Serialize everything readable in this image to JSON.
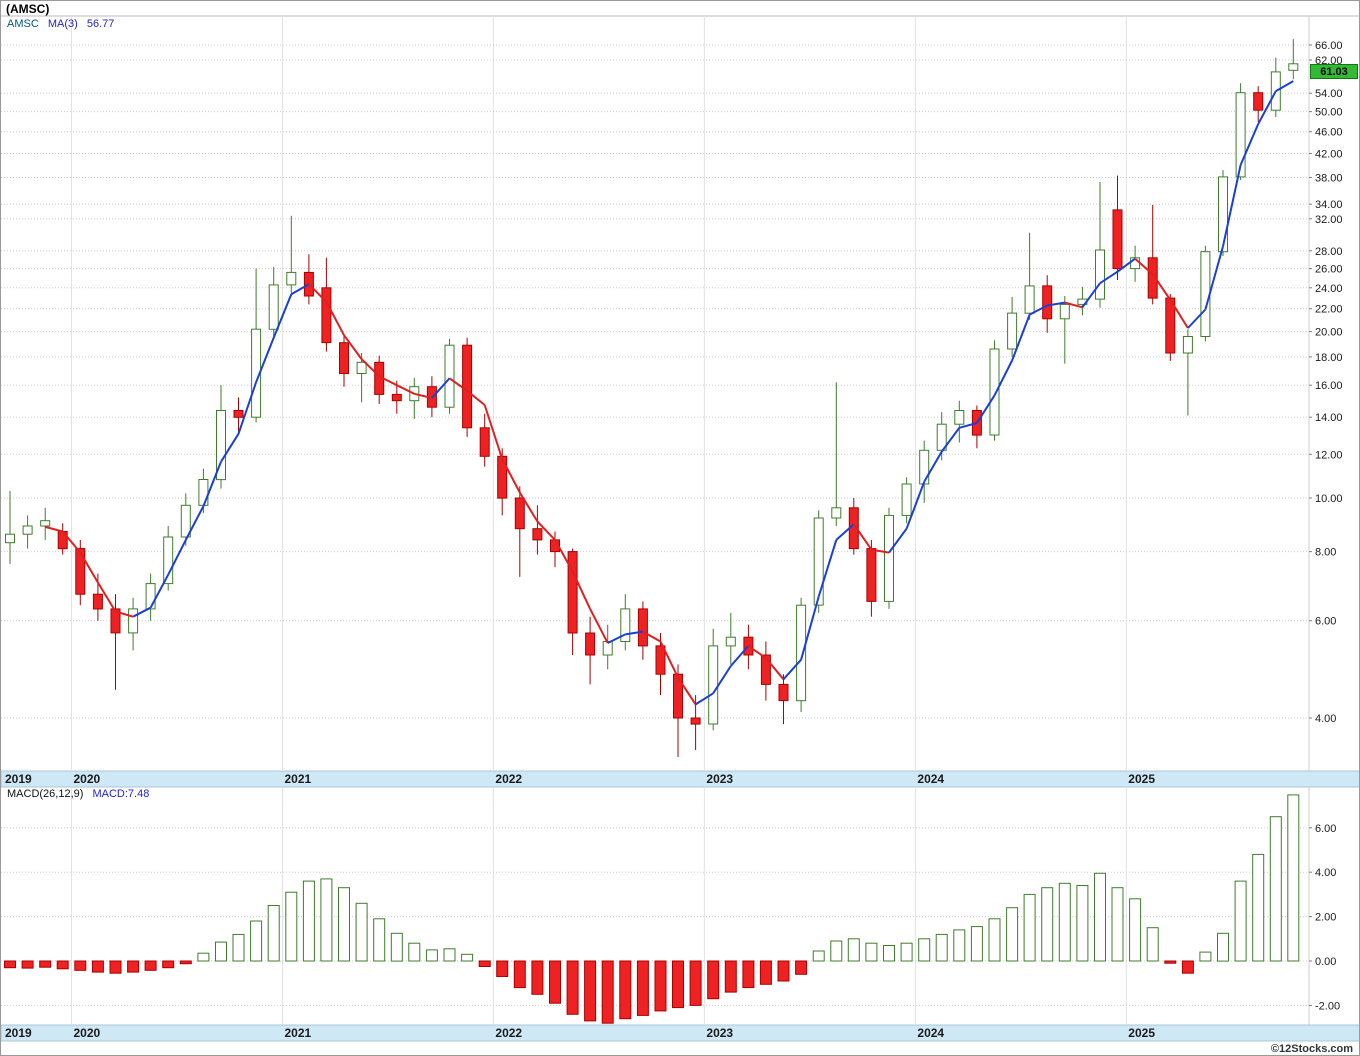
{
  "window": {
    "title": "(AMSC)"
  },
  "price_panel": {
    "legend_symbol": "AMSC",
    "legend_ma": "MA(3)",
    "legend_ma_value": "56.77",
    "last_price": "61.03"
  },
  "macd_panel": {
    "legend": "MACD(26,12,9)",
    "legend_value": "MACD:7.48"
  },
  "footer": {
    "credit": "©12Stocks.com"
  },
  "colors": {
    "up": "#3f7d2c",
    "down": "#ee2222",
    "down_stroke": "#aa0000",
    "ma_up": "#1a3fd4",
    "ma_down": "#e02020",
    "band": "#cfe8f6",
    "badge_bg": "#33b933"
  },
  "chart_data": {
    "type": "candlestick_with_macd",
    "title": "(AMSC)",
    "symbol": "AMSC",
    "interval": "monthly",
    "price_axis": {
      "scale": "log",
      "ticks": [
        66,
        62,
        54,
        50,
        46,
        42,
        38,
        34,
        32,
        28,
        26,
        24,
        22,
        20,
        18,
        16,
        14,
        12,
        10,
        8,
        6,
        4
      ],
      "range": [
        3.2,
        74
      ]
    },
    "macd_axis": {
      "scale": "linear",
      "ticks": [
        6,
        4,
        2,
        0,
        -2
      ],
      "range": [
        -2.9,
        7.7
      ]
    },
    "x_years": [
      {
        "label": "2019",
        "index": 0
      },
      {
        "label": "2020",
        "index": 4
      },
      {
        "label": "2021",
        "index": 16
      },
      {
        "label": "2022",
        "index": 28
      },
      {
        "label": "2023",
        "index": 40
      },
      {
        "label": "2024",
        "index": 52
      },
      {
        "label": "2025",
        "index": 64
      }
    ],
    "ma_period": 3,
    "ma_last": 56.77,
    "macd_last": 7.48,
    "last_close": 61.03,
    "months": [
      "2019-09",
      "2019-10",
      "2019-11",
      "2019-12",
      "2020-01",
      "2020-02",
      "2020-03",
      "2020-04",
      "2020-05",
      "2020-06",
      "2020-07",
      "2020-08",
      "2020-09",
      "2020-10",
      "2020-11",
      "2020-12",
      "2021-01",
      "2021-02",
      "2021-03",
      "2021-04",
      "2021-05",
      "2021-06",
      "2021-07",
      "2021-08",
      "2021-09",
      "2021-10",
      "2021-11",
      "2021-12",
      "2022-01",
      "2022-02",
      "2022-03",
      "2022-04",
      "2022-05",
      "2022-06",
      "2022-07",
      "2022-08",
      "2022-09",
      "2022-10",
      "2022-11",
      "2022-12",
      "2023-01",
      "2023-02",
      "2023-03",
      "2023-04",
      "2023-05",
      "2023-06",
      "2023-07",
      "2023-08",
      "2023-09",
      "2023-10",
      "2023-11",
      "2023-12",
      "2024-01",
      "2024-02",
      "2024-03",
      "2024-04",
      "2024-05",
      "2024-06",
      "2024-07",
      "2024-08",
      "2024-09",
      "2024-10",
      "2024-11",
      "2024-12",
      "2025-01",
      "2025-02",
      "2025-03",
      "2025-04",
      "2025-05",
      "2025-06",
      "2025-07",
      "2025-08",
      "2025-09",
      "2025-10"
    ],
    "ohlc": [
      [
        8.3,
        10.3,
        7.6,
        8.6
      ],
      [
        8.6,
        9.3,
        8.1,
        8.9
      ],
      [
        8.9,
        9.6,
        8.4,
        9.1
      ],
      [
        8.7,
        9.0,
        7.9,
        8.1
      ],
      [
        8.1,
        8.4,
        6.4,
        6.7
      ],
      [
        6.7,
        7.3,
        6.0,
        6.3
      ],
      [
        6.3,
        6.7,
        4.5,
        5.7
      ],
      [
        5.7,
        6.6,
        5.3,
        6.3
      ],
      [
        6.3,
        7.3,
        6.0,
        7.0
      ],
      [
        7.0,
        8.9,
        6.8,
        8.5
      ],
      [
        8.5,
        10.2,
        8.2,
        9.7
      ],
      [
        9.7,
        11.3,
        9.4,
        10.8
      ],
      [
        10.8,
        16.0,
        10.4,
        14.4
      ],
      [
        14.4,
        15.2,
        13.0,
        14.0
      ],
      [
        14.0,
        26.0,
        13.7,
        20.2
      ],
      [
        20.2,
        26.2,
        19.4,
        24.3
      ],
      [
        24.3,
        32.4,
        23.4,
        25.6
      ],
      [
        25.6,
        27.6,
        22.4,
        23.2
      ],
      [
        24.0,
        27.2,
        18.4,
        19.1
      ],
      [
        19.1,
        19.8,
        15.9,
        16.8
      ],
      [
        16.8,
        18.3,
        14.9,
        17.6
      ],
      [
        17.6,
        18.1,
        14.8,
        15.4
      ],
      [
        15.4,
        16.3,
        14.2,
        15.0
      ],
      [
        15.0,
        16.5,
        13.9,
        15.9
      ],
      [
        15.9,
        16.6,
        14.0,
        14.6
      ],
      [
        14.6,
        19.4,
        14.2,
        18.9
      ],
      [
        18.9,
        19.5,
        12.9,
        13.4
      ],
      [
        13.4,
        14.2,
        11.4,
        11.9
      ],
      [
        11.9,
        12.3,
        9.3,
        10.0
      ],
      [
        10.0,
        10.5,
        7.2,
        8.8
      ],
      [
        8.8,
        9.7,
        7.9,
        8.4
      ],
      [
        8.4,
        8.7,
        7.5,
        8.0
      ],
      [
        8.0,
        8.1,
        5.2,
        5.7
      ],
      [
        5.7,
        6.1,
        4.6,
        5.2
      ],
      [
        5.2,
        5.9,
        4.9,
        5.5
      ],
      [
        5.5,
        6.7,
        5.3,
        6.3
      ],
      [
        6.3,
        6.5,
        5.1,
        5.4
      ],
      [
        5.4,
        5.7,
        4.4,
        4.8
      ],
      [
        4.8,
        5.0,
        3.4,
        4.0
      ],
      [
        4.0,
        4.4,
        3.5,
        3.9
      ],
      [
        3.9,
        5.8,
        3.8,
        5.4
      ],
      [
        5.4,
        6.2,
        5.0,
        5.6
      ],
      [
        5.6,
        5.9,
        4.9,
        5.2
      ],
      [
        5.2,
        5.5,
        4.3,
        4.6
      ],
      [
        4.6,
        4.8,
        3.9,
        4.3
      ],
      [
        4.3,
        6.6,
        4.1,
        6.4
      ],
      [
        6.4,
        9.5,
        6.2,
        9.2
      ],
      [
        9.2,
        16.2,
        8.9,
        9.6
      ],
      [
        9.6,
        10.0,
        7.9,
        8.1
      ],
      [
        8.1,
        8.4,
        6.1,
        6.5
      ],
      [
        6.5,
        9.6,
        6.3,
        9.3
      ],
      [
        9.3,
        10.9,
        9.0,
        10.6
      ],
      [
        10.6,
        12.7,
        9.8,
        12.2
      ],
      [
        12.2,
        14.3,
        11.7,
        13.6
      ],
      [
        13.6,
        15.0,
        12.6,
        14.4
      ],
      [
        14.4,
        14.7,
        12.3,
        13.0
      ],
      [
        13.0,
        19.3,
        12.7,
        18.6
      ],
      [
        18.6,
        23.1,
        18.0,
        21.6
      ],
      [
        21.6,
        30.2,
        21.0,
        24.2
      ],
      [
        24.2,
        25.3,
        19.9,
        21.1
      ],
      [
        21.1,
        23.2,
        17.5,
        22.4
      ],
      [
        22.4,
        24.1,
        21.4,
        22.9
      ],
      [
        22.9,
        37.3,
        22.1,
        28.1
      ],
      [
        33.2,
        38.3,
        24.8,
        26.0
      ],
      [
        26.0,
        28.6,
        24.6,
        27.2
      ],
      [
        27.2,
        33.9,
        22.4,
        23.0
      ],
      [
        23.0,
        23.4,
        17.7,
        18.3
      ],
      [
        18.3,
        20.2,
        14.1,
        19.6
      ],
      [
        19.6,
        28.6,
        19.2,
        27.9
      ],
      [
        27.9,
        39.2,
        27.4,
        38.1
      ],
      [
        38.1,
        56.3,
        37.6,
        54.1
      ],
      [
        54.1,
        55.6,
        47.9,
        50.3
      ],
      [
        50.3,
        62.6,
        48.9,
        59.0
      ],
      [
        59.4,
        67.6,
        57.2,
        61.03
      ]
    ],
    "macd_hist": [
      -0.3,
      -0.32,
      -0.28,
      -0.35,
      -0.42,
      -0.5,
      -0.55,
      -0.5,
      -0.42,
      -0.3,
      -0.12,
      0.35,
      0.85,
      1.2,
      1.8,
      2.5,
      3.1,
      3.6,
      3.7,
      3.3,
      2.6,
      1.9,
      1.25,
      0.8,
      0.5,
      0.55,
      0.3,
      -0.25,
      -0.7,
      -1.2,
      -1.5,
      -1.9,
      -2.4,
      -2.7,
      -2.8,
      -2.6,
      -2.45,
      -2.25,
      -2.1,
      -2.0,
      -1.7,
      -1.4,
      -1.2,
      -1.05,
      -0.9,
      -0.6,
      0.45,
      0.9,
      1.0,
      0.8,
      0.7,
      0.8,
      1.0,
      1.2,
      1.4,
      1.55,
      1.9,
      2.4,
      3.0,
      3.3,
      3.5,
      3.4,
      3.95,
      3.3,
      2.8,
      1.5,
      -0.1,
      -0.55,
      0.4,
      1.25,
      3.6,
      4.8,
      6.5,
      7.48
    ]
  }
}
